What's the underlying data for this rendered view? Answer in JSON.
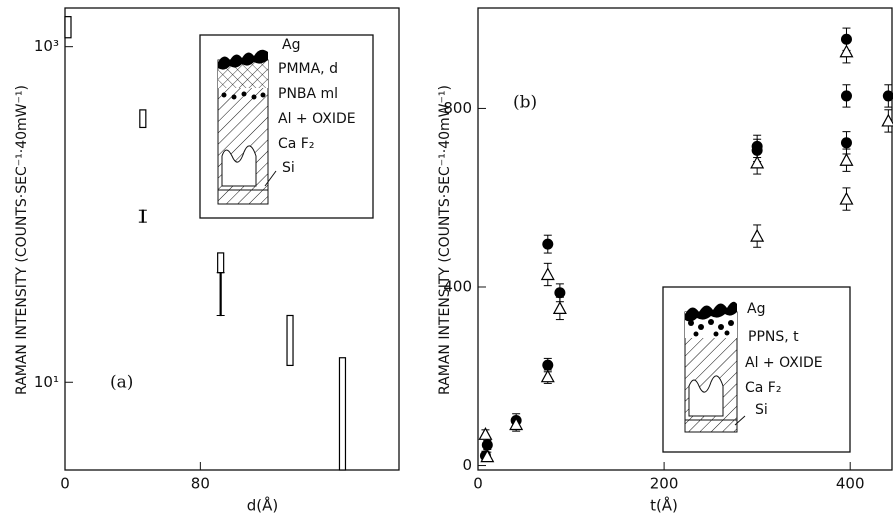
{
  "chart_data": [
    {
      "type": "range",
      "panel_label": "(a)",
      "x_label": "d(Å)",
      "y_label": "RAMAN INTENSITY (COUNTS·SEC⁻¹·40mW⁻¹)",
      "log_y": true,
      "xlim": [
        0,
        198
      ],
      "ylim": [
        3,
        1700
      ],
      "xticks": [
        0,
        80
      ],
      "yticks": [
        {
          "value": 10,
          "label": "10¹"
        },
        {
          "value": 1000,
          "label": "10³"
        }
      ],
      "x": [
        0,
        46,
        46,
        92,
        92,
        133,
        164
      ],
      "low": [
        1130,
        330,
        90,
        45,
        25,
        12.6,
        3
      ],
      "high": [
        1510,
        420,
        106,
        59,
        45,
        25,
        14
      ],
      "marker": [
        "box",
        "box",
        "whisker",
        "box",
        "whisker",
        "box",
        "box"
      ],
      "color": "#000000",
      "inset_labels": [
        "Ag",
        "PMMA, d",
        "PNBA ml",
        "Al + OXIDE",
        "Ca F₂",
        "Si"
      ]
    },
    {
      "type": "scatter",
      "panel_label": "(b)",
      "x_label": "t(Å)",
      "y_label": "RAMAN INTENSITY (COUNTS·SEC⁻¹·40mW⁻¹)",
      "xlim": [
        0,
        446
      ],
      "ylim": [
        -10,
        1025
      ],
      "xticks": [
        0,
        200,
        400
      ],
      "yticks": [
        0,
        400,
        800
      ],
      "series": [
        {
          "marker": "circle",
          "color": "#000000",
          "x": [
            8,
            10,
            41,
            75,
            75,
            88,
            300,
            300,
            396,
            396,
            396,
            441
          ],
          "values": [
            22,
            46,
            101,
            496,
            225,
            387,
            715,
            706,
            955,
            828,
            723,
            828
          ],
          "errors": [
            10,
            10,
            15,
            20,
            15,
            20,
            25,
            25,
            25,
            25,
            25,
            25
          ]
        },
        {
          "marker": "triangle",
          "color": "#000000",
          "x": [
            8,
            10,
            41,
            75,
            75,
            88,
            300,
            300,
            396,
            396,
            396,
            441
          ],
          "values": [
            70,
            20,
            92,
            428,
            199,
            352,
            678,
            514,
            927,
            684,
            597,
            772
          ],
          "errors": [
            10,
            10,
            15,
            25,
            15,
            25,
            25,
            25,
            25,
            25,
            25,
            25
          ]
        }
      ],
      "inset_labels": [
        "Ag",
        "PPNS, t",
        "Al + OXIDE",
        "Ca F₂",
        "Si"
      ]
    }
  ]
}
